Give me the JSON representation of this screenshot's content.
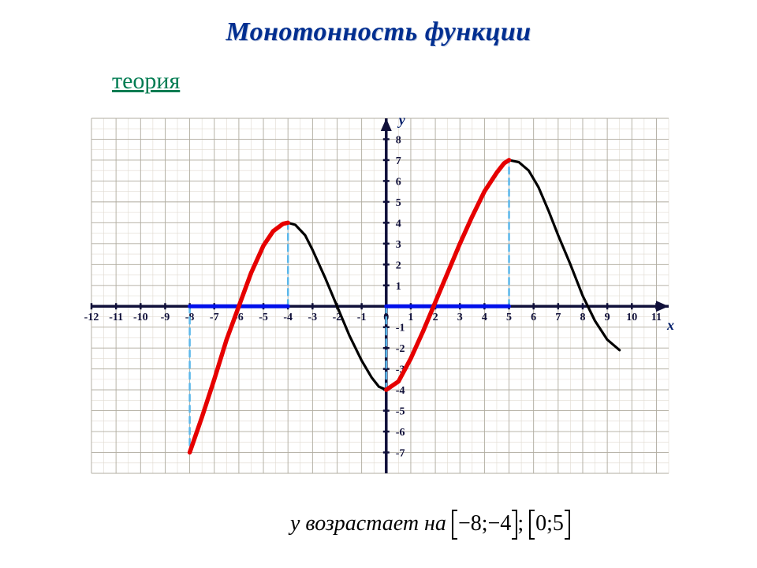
{
  "title": "Монотонность функции",
  "link_text": "теория",
  "answer_prefix": "у возрастает на ",
  "interval1": "−8;−4",
  "interval_sep": ";",
  "interval2": "0;5",
  "chart": {
    "type": "line",
    "background_color": "#ffffff",
    "grid_minor_color": "#e0dad0",
    "grid_major_color": "#b0aca0",
    "axis_color": "#10103a",
    "tick_font_size": 14,
    "tick_font_weight": "bold",
    "tick_color": "#10103a",
    "axis_label_color": "#001c6a",
    "axis_label_fontsize": 18,
    "xlim": [
      -12,
      11.5
    ],
    "ylim": [
      -8,
      9
    ],
    "xticks": [
      -12,
      -11,
      -10,
      -9,
      -8,
      -7,
      -6,
      -5,
      -4,
      -3,
      -2,
      -1,
      0,
      1,
      2,
      3,
      4,
      5,
      6,
      7,
      8,
      9,
      10,
      11
    ],
    "yticks": [
      -7,
      -6,
      -5,
      -4,
      -3,
      -2,
      -1,
      1,
      2,
      3,
      4,
      5,
      6,
      7,
      8
    ],
    "xlabel": "x",
    "ylabel": "y",
    "red_curve": {
      "color": "#e60000",
      "width": 5.5,
      "points": [
        [
          -8,
          -7
        ],
        [
          -7.5,
          -5.3
        ],
        [
          -7,
          -3.5
        ],
        [
          -6.5,
          -1.6
        ],
        [
          -6,
          0
        ],
        [
          -5.5,
          1.6
        ],
        [
          -5,
          2.9
        ],
        [
          -4.6,
          3.6
        ],
        [
          -4.2,
          3.95
        ],
        [
          -4,
          4
        ]
      ]
    },
    "red_curve2": {
      "color": "#e60000",
      "width": 5.5,
      "points": [
        [
          0,
          -4
        ],
        [
          0.5,
          -3.6
        ],
        [
          1,
          -2.5
        ],
        [
          1.5,
          -1.2
        ],
        [
          2,
          0.2
        ],
        [
          2.5,
          1.6
        ],
        [
          3,
          3.0
        ],
        [
          3.5,
          4.3
        ],
        [
          4,
          5.5
        ],
        [
          4.5,
          6.4
        ],
        [
          4.8,
          6.85
        ],
        [
          5,
          7
        ]
      ]
    },
    "black_curve": {
      "color": "#000000",
      "width": 3.2,
      "points": [
        [
          -4,
          4
        ],
        [
          -3.7,
          3.9
        ],
        [
          -3.3,
          3.4
        ],
        [
          -3,
          2.7
        ],
        [
          -2.5,
          1.4
        ],
        [
          -2,
          0
        ],
        [
          -1.5,
          -1.4
        ],
        [
          -1,
          -2.6
        ],
        [
          -0.6,
          -3.4
        ],
        [
          -0.3,
          -3.85
        ],
        [
          0,
          -4
        ]
      ]
    },
    "black_curve2": {
      "color": "#000000",
      "width": 3.2,
      "points": [
        [
          5,
          7
        ],
        [
          5.4,
          6.9
        ],
        [
          5.8,
          6.5
        ],
        [
          6.2,
          5.7
        ],
        [
          6.6,
          4.6
        ],
        [
          7,
          3.4
        ],
        [
          7.5,
          2.0
        ],
        [
          8,
          0.5
        ],
        [
          8.5,
          -0.7
        ],
        [
          9,
          -1.6
        ],
        [
          9.5,
          -2.1
        ]
      ]
    },
    "blue_segments": {
      "color": "#0010ea",
      "width": 5,
      "segments": [
        [
          [
            -8,
            0
          ],
          [
            -4,
            0
          ]
        ],
        [
          [
            0,
            0
          ],
          [
            5,
            0
          ]
        ]
      ]
    },
    "dashed_guides": {
      "color": "#5bb7ea",
      "width": 2.5,
      "dash": "8 6",
      "lines": [
        [
          [
            -8,
            0
          ],
          [
            -8,
            -7
          ]
        ],
        [
          [
            -4,
            0
          ],
          [
            -4,
            4
          ]
        ],
        [
          [
            0,
            -4
          ],
          [
            0,
            0
          ]
        ],
        [
          [
            5,
            0
          ],
          [
            5,
            7
          ]
        ]
      ]
    }
  }
}
